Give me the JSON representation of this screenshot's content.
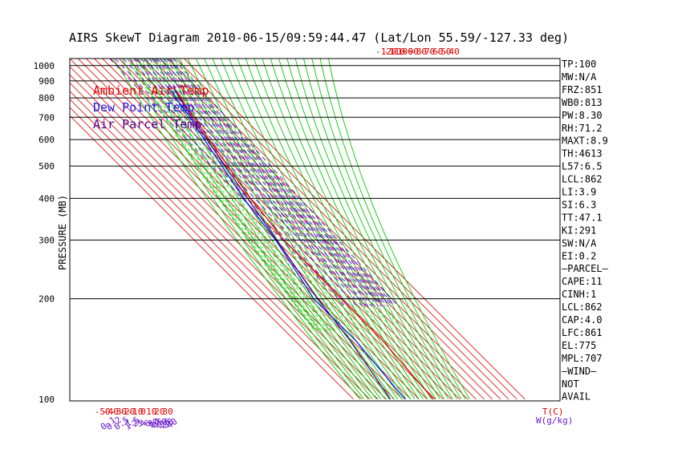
{
  "chart_data": {
    "type": "line",
    "title": "AIRS SkewT Diagram 2010-06-15/09:59:44.47 (Lat/Lon 55.59/-127.33 deg)",
    "ylabel": "PRESSURE (MB)",
    "xlabel": "T(C)",
    "mixing_ratio_label": "W(g/kg)",
    "y_scale": "log",
    "ylim": [
      1050,
      100
    ],
    "pressure_ticks": [
      100,
      200,
      300,
      400,
      500,
      600,
      700,
      800,
      900,
      1000
    ],
    "top_temp_ticks": [
      -120,
      -110,
      -100,
      -90,
      -80,
      -70,
      -60,
      -50,
      -40
    ],
    "bottom_temp_ticks": [
      -50,
      -40,
      -30,
      -20,
      -10,
      0,
      10,
      20,
      30
    ],
    "mixing_ratio_ticks": [
      "0.1",
      "0.2",
      "0.5",
      "1",
      "1.5",
      "2",
      "3",
      "4",
      "6",
      "8",
      "10",
      "12",
      "15",
      "20",
      "25",
      "30",
      "40"
    ],
    "legend": [
      {
        "name": "Ambient Air Temp",
        "color": "#e00000"
      },
      {
        "name": "Dew Point Temp",
        "color": "#1a1ae6"
      },
      {
        "name": "Air Parcel Temp",
        "color": "#50008c"
      }
    ],
    "series": [
      {
        "name": "Ambient Air Temp",
        "color": "#e00000",
        "points": [
          [
            868,
            3.2
          ],
          [
            850,
            1.1
          ],
          [
            800,
            -2.6
          ],
          [
            700,
            -9.9
          ],
          [
            600,
            -18.6
          ],
          [
            500,
            -28.1
          ],
          [
            400,
            -40.4
          ],
          [
            350,
            -44.2
          ],
          [
            300,
            -50.2
          ],
          [
            250,
            -50.9
          ],
          [
            200,
            -52.4
          ],
          [
            150,
            -52.6
          ],
          [
            100,
            -62.3
          ]
        ]
      },
      {
        "name": "Dew Point Temp",
        "color": "#1a1ae6",
        "points": [
          [
            868,
            -3.2
          ],
          [
            850,
            -5.6
          ],
          [
            800,
            -8.7
          ],
          [
            700,
            -14.5
          ],
          [
            600,
            -24.5
          ],
          [
            500,
            -35.4
          ],
          [
            400,
            -48.6
          ],
          [
            300,
            -60.3
          ],
          [
            250,
            -71.5
          ],
          [
            200,
            -85.8
          ],
          [
            150,
            -85.5
          ],
          [
            100,
            -96.9
          ]
        ]
      },
      {
        "name": "Air Parcel Temp",
        "color": "#50008c",
        "points": [
          [
            868,
            3.2
          ],
          [
            850,
            1.2
          ],
          [
            800,
            -4.0
          ],
          [
            700,
            -12.5
          ],
          [
            600,
            -21.2
          ],
          [
            500,
            -31.2
          ],
          [
            400,
            -43.6
          ],
          [
            300,
            -59.0
          ],
          [
            250,
            -69.0
          ],
          [
            200,
            -80.5
          ],
          [
            150,
            -92.5
          ],
          [
            100,
            -114.8
          ]
        ]
      }
    ],
    "indices": [
      "TP:100",
      "MW:N/A",
      "FRZ:851",
      "WB0:813",
      "PW:8.30",
      "RH:71.2",
      "MAXT:8.9",
      "TH:4613",
      "L57:6.5",
      "LCL:862",
      "LI:3.9",
      "SI:6.3",
      "TT:47.1",
      "KI:291",
      "SW:N/A",
      "EI:0.2",
      "—PARCEL—",
      "CAPE:11",
      "CINH:1",
      "LCL:862",
      "CAP:4.0",
      "LFC:861",
      "EL:775",
      "MPL:707",
      "—WIND—",
      "NOT",
      "AVAIL"
    ],
    "colors": {
      "isotherm": "#e01818",
      "dry_adiabat": "#00cc00",
      "moist_adiabat": "#33dd33",
      "mixing_ratio": "#6a1acd",
      "isobar": "#000000",
      "tick_red": "#e00000",
      "tick_purple": "#6a1acd"
    }
  }
}
